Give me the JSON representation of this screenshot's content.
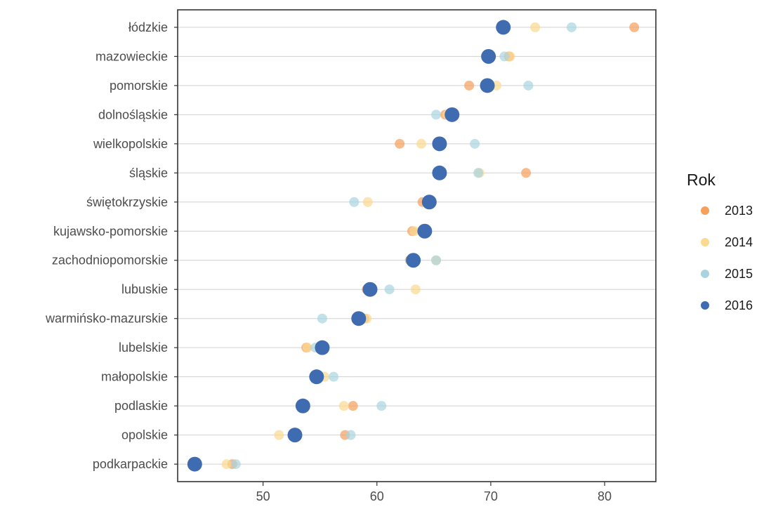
{
  "chart_data": {
    "type": "scatter",
    "title": "",
    "xlabel": "",
    "ylabel": "",
    "xlim": [
      42.5,
      84.5
    ],
    "x_ticks": [
      50,
      60,
      70,
      80
    ],
    "grid": "horizontal",
    "categories": [
      "łódzkie",
      "mazowieckie",
      "pomorskie",
      "dolnośląskie",
      "wielkopolskie",
      "śląskie",
      "świętokrzyskie",
      "kujawsko-pomorskie",
      "zachodniopomorskie",
      "lubuskie",
      "warmińsko-mazurskie",
      "lubelskie",
      "małopolskie",
      "podlaskie",
      "opolskie",
      "podkarpackie"
    ],
    "legend": {
      "title": "Rok",
      "position": "right"
    },
    "series": [
      {
        "name": "2013",
        "color": "#F5A05B",
        "values": [
          82.6,
          71.6,
          68.1,
          66.0,
          62.0,
          73.1,
          64.0,
          63.1,
          62.9,
          59.1,
          58.9,
          53.8,
          54.9,
          57.9,
          57.2,
          47.3
        ]
      },
      {
        "name": "2014",
        "color": "#FBD98E",
        "values": [
          73.9,
          71.7,
          70.5,
          66.2,
          63.9,
          69.0,
          59.2,
          63.3,
          65.2,
          63.4,
          59.1,
          53.9,
          55.4,
          57.1,
          51.4,
          46.8
        ]
      },
      {
        "name": "2015",
        "color": "#A8D4E0",
        "values": [
          77.1,
          71.2,
          73.3,
          65.2,
          68.6,
          68.9,
          58.0,
          64.0,
          65.2,
          61.1,
          55.2,
          54.6,
          56.2,
          60.4,
          57.7,
          47.6
        ]
      },
      {
        "name": "2016",
        "color": "#3F6CB0",
        "values": [
          71.1,
          69.8,
          69.7,
          66.6,
          65.5,
          65.5,
          64.6,
          64.2,
          63.2,
          59.4,
          58.4,
          55.2,
          54.7,
          53.5,
          52.8,
          44.0
        ]
      }
    ]
  }
}
